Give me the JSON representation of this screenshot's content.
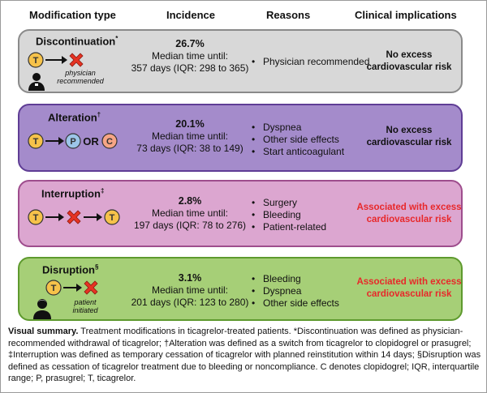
{
  "headers": {
    "modification_type": "Modification type",
    "incidence": "Incidence",
    "reasons": "Reasons",
    "clinical_implications": "Clinical implications"
  },
  "colors": {
    "discontinuation": "#d8d8d8",
    "alteration": "#a48bcb",
    "interruption": "#dca6d0",
    "disruption": "#a6cf77",
    "ticagrelor_circle": "#f6c24a",
    "prasugrel_circle": "#9cc5e8",
    "clopidogrel_circle": "#f6a585",
    "cross": "#e63323",
    "excess_risk_text": "#e8282a"
  },
  "rows": [
    {
      "title": "Discontinuation",
      "mark": "*",
      "pct": "26.7%",
      "median_label": "Median time until:",
      "median_value": "357 days (IQR: 298 to 365)",
      "reasons": [
        "Physician recommended"
      ],
      "implication": [
        "No excess",
        "cardiovascular risk"
      ],
      "actor": [
        "physician",
        "recommended"
      ]
    },
    {
      "title": "Alteration",
      "mark": "†",
      "pct": "20.1%",
      "median_label": "Median time until:",
      "median_value": "73 days (IQR: 38 to 149)",
      "reasons": [
        "Dyspnea",
        "Other side effects",
        "Start anticoagulant"
      ],
      "implication": [
        "No excess",
        "cardiovascular risk"
      ],
      "or_label": "OR"
    },
    {
      "title": "Interruption",
      "mark": "‡",
      "pct": "2.8%",
      "median_label": "Median time until:",
      "median_value": "197 days (IQR: 78 to 276)",
      "reasons": [
        "Surgery",
        "Bleeding",
        "Patient-related"
      ],
      "implication": [
        "Associated with excess",
        "cardiovascular risk"
      ]
    },
    {
      "title": "Disruption",
      "mark": "§",
      "pct": "3.1%",
      "median_label": "Median time until:",
      "median_value": "201 days (IQR: 123 to 280)",
      "reasons": [
        "Bleeding",
        "Dyspnea",
        "Other side effects"
      ],
      "implication": [
        "Associated with excess",
        "cardiovascular risk"
      ],
      "actor": [
        "patient",
        "initiated"
      ]
    }
  ],
  "icons": {
    "ticagrelor": "T",
    "prasugrel": "P",
    "clopidogrel": "C"
  },
  "caption": {
    "lead": "Visual summary.",
    "line1": "Treatment modifications in ticagrelor-treated patients. *Discontinuation was defined as physician-",
    "line2": "recommended withdrawal of ticagrelor; †Alteration was defined as a switch from ticagrelor to clopidogrel or prasugrel;",
    "line3": "‡Interruption was defined as temporary cessation of ticagrelor with planned reinstitution within 14 days; §Disruption was",
    "line4": "defined as cessation of ticagrelor treatment due to bleeding or noncompliance. C denotes clopidogrel; IQR, interquartile",
    "line5": "range; P, prasugrel; T, ticagrelor."
  }
}
